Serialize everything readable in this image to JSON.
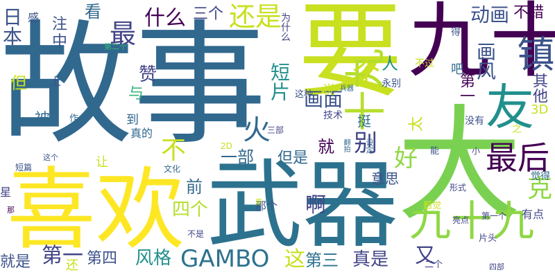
{
  "palette": {
    "dark_purple": "#440154",
    "indigo": "#3b528b",
    "steel_blue": "#31688e",
    "teal": "#21908d",
    "sea_green": "#2c728e",
    "green": "#35b779",
    "lime": "#8fd744",
    "yellow_green": "#c8e020",
    "yellow": "#fde725",
    "dark_slate": "#414487"
  },
  "words": [
    "故事",
    "要",
    "大",
    "九十",
    "喜欢",
    "武器",
    "镇",
    "友",
    "九十九",
    "十九",
    "火",
    "最后",
    "最",
    "什么",
    "三个",
    "还是",
    "动画",
    "不错",
    "日本",
    "中",
    "注",
    "看",
    "人",
    "吧",
    "画风",
    "短片",
    "赞",
    "与",
    "画面",
    "个",
    "第一",
    "其他",
    "克",
    "被",
    "到",
    "真的",
    "就",
    "别",
    "不",
    "一部",
    "但是",
    "好",
    "前",
    "四个",
    "意思",
    "啊",
    "风格",
    "GAMBO",
    "这",
    "第三",
    "真是",
    "第一",
    "第四",
    "就是",
    "又",
    "但",
    "上",
    "感",
    "为什么",
    "第二个",
    "说",
    "兵器",
    "技术",
    "这种",
    "太",
    "之",
    "3D",
    "挺",
    "永别",
    "得",
    "不过",
    "没有",
    "小",
    "能",
    "觉得",
    "形式",
    "有点",
    "亮点",
    "第一个",
    "感觉",
    "片头",
    "二个",
    "四部",
    "那个",
    "更",
    "文化",
    "让",
    "作",
    "三部",
    "2D",
    "这个",
    "短篇",
    "星",
    "那",
    "还",
    "不是",
    "设定",
    "翻拍"
  ]
}
